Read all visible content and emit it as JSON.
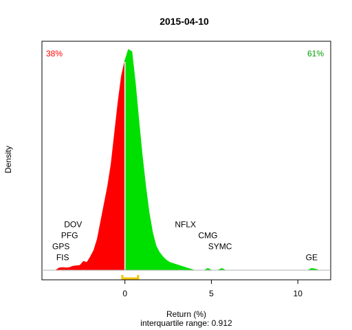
{
  "chart_data": {
    "type": "area",
    "title": "2015-04-10",
    "xlabel": "Return (%)",
    "ylabel": "Density",
    "subtitle": "interquartile range: 0.912",
    "xlim": [
      -4.8,
      11.9
    ],
    "ylim": [
      0,
      1.0
    ],
    "xticks": [
      0,
      5,
      10
    ],
    "split_at": 0,
    "negative_share": "38%",
    "positive_share": "61%",
    "colors": {
      "negative": "#ff0000",
      "positive": "#00e000",
      "iqr": "#f5c400"
    },
    "iqr": [
      -0.15,
      0.76
    ],
    "series": [
      {
        "values": [
          [
            -4.0,
            0.0
          ],
          [
            -3.8,
            0.01
          ],
          [
            -3.6,
            0.012
          ],
          [
            -3.4,
            0.01
          ],
          [
            -3.2,
            0.012
          ],
          [
            -3.0,
            0.018
          ],
          [
            -2.8,
            0.02
          ],
          [
            -2.6,
            0.022
          ],
          [
            -2.4,
            0.04
          ],
          [
            -2.2,
            0.035
          ],
          [
            -2.0,
            0.06
          ],
          [
            -1.8,
            0.09
          ],
          [
            -1.6,
            0.14
          ],
          [
            -1.4,
            0.22
          ],
          [
            -1.2,
            0.3
          ],
          [
            -1.0,
            0.38
          ],
          [
            -0.8,
            0.48
          ],
          [
            -0.6,
            0.62
          ],
          [
            -0.4,
            0.76
          ],
          [
            -0.2,
            0.88
          ],
          [
            0.0,
            0.95
          ],
          [
            0.2,
            1.0
          ],
          [
            0.4,
            0.99
          ],
          [
            0.6,
            0.85
          ],
          [
            0.8,
            0.68
          ],
          [
            1.0,
            0.52
          ],
          [
            1.2,
            0.38
          ],
          [
            1.4,
            0.26
          ],
          [
            1.6,
            0.17
          ],
          [
            1.8,
            0.11
          ],
          [
            2.0,
            0.08
          ],
          [
            2.2,
            0.06
          ],
          [
            2.4,
            0.045
          ],
          [
            2.6,
            0.035
          ],
          [
            2.8,
            0.03
          ],
          [
            3.0,
            0.025
          ],
          [
            3.2,
            0.02
          ],
          [
            3.4,
            0.015
          ],
          [
            3.6,
            0.01
          ],
          [
            3.8,
            0.005
          ],
          [
            4.0,
            0.0
          ],
          [
            4.6,
            0.0
          ],
          [
            4.8,
            0.008
          ],
          [
            5.0,
            0.0
          ],
          [
            5.4,
            0.0
          ],
          [
            5.6,
            0.008
          ],
          [
            5.8,
            0.0
          ],
          [
            10.6,
            0.0
          ],
          [
            10.8,
            0.008
          ],
          [
            11.0,
            0.005
          ],
          [
            11.2,
            0.0
          ]
        ]
      }
    ],
    "annotations": [
      {
        "text": "DOV",
        "x": -3.0,
        "y": 0.195
      },
      {
        "text": "PFG",
        "x": -3.2,
        "y": 0.145
      },
      {
        "text": "GPS",
        "x": -3.7,
        "y": 0.095
      },
      {
        "text": "FIS",
        "x": -3.6,
        "y": 0.045
      },
      {
        "text": "NFLX",
        "x": 3.5,
        "y": 0.195
      },
      {
        "text": "CMG",
        "x": 4.8,
        "y": 0.145
      },
      {
        "text": "SYMC",
        "x": 5.5,
        "y": 0.095
      },
      {
        "text": "GE",
        "x": 10.8,
        "y": 0.045
      }
    ]
  }
}
